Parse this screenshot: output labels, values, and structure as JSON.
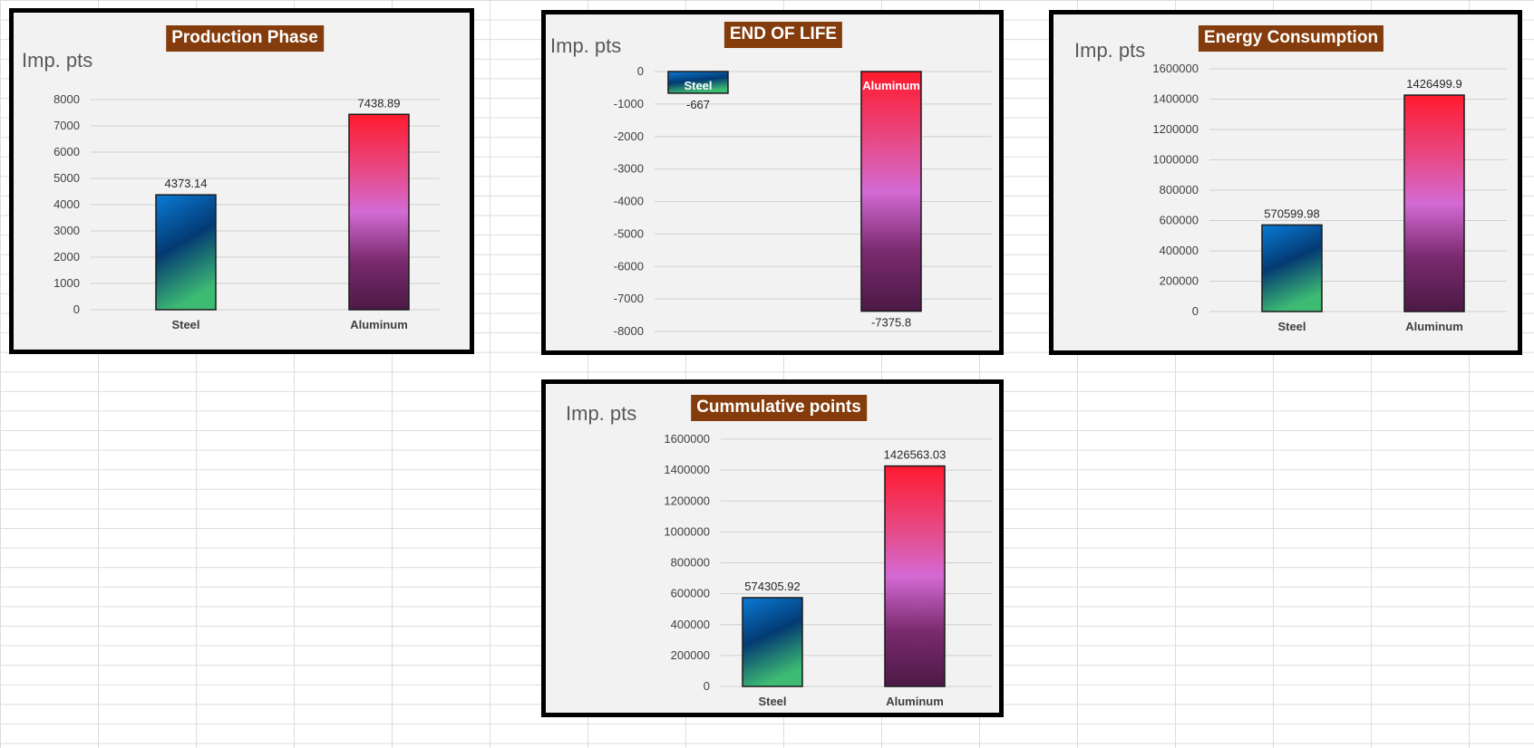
{
  "colors": {
    "title_bg": "#843c0c",
    "title_text": "#ffffff",
    "plot_bg": "#f2f2f2",
    "steel_gradient": [
      "#0a7bd6",
      "#033a73",
      "#3dbb73"
    ],
    "aluminum_gradient": [
      "#ff1a2e",
      "#e64b8a",
      "#d36ad4",
      "#7a2a6e",
      "#4b1a45"
    ]
  },
  "chart_data": [
    {
      "id": "production",
      "type": "bar",
      "title": "Production Phase",
      "ylabel": "Imp. pts",
      "categories": [
        "Steel",
        "Aluminum"
      ],
      "values": [
        4373.14,
        7438.89
      ],
      "data_labels": [
        "4373.14",
        "7438.89"
      ],
      "ylim": [
        0,
        8000
      ],
      "yticks": [
        0,
        1000,
        2000,
        3000,
        4000,
        5000,
        6000,
        7000,
        8000
      ],
      "grid": true,
      "legend": "none"
    },
    {
      "id": "end-of-life",
      "type": "bar",
      "title": "END OF LIFE",
      "ylabel": "Imp. pts",
      "categories": [
        "Steel",
        "Aluminum"
      ],
      "values": [
        -667,
        -7375.8
      ],
      "data_labels": [
        "-667",
        "-7375.8"
      ],
      "ylim": [
        -8000,
        0
      ],
      "yticks": [
        0,
        -1000,
        -2000,
        -3000,
        -4000,
        -5000,
        -6000,
        -7000,
        -8000
      ],
      "grid": true,
      "legend": "none"
    },
    {
      "id": "energy",
      "type": "bar",
      "title": "Energy Consumption",
      "ylabel": "Imp. pts",
      "categories": [
        "Steel",
        "Aluminum"
      ],
      "values": [
        570599.98,
        1426499.9
      ],
      "data_labels": [
        "570599.98",
        "1426499.9"
      ],
      "ylim": [
        0,
        1600000
      ],
      "yticks": [
        0,
        200000,
        400000,
        600000,
        800000,
        1000000,
        1200000,
        1400000,
        1600000
      ],
      "grid": true,
      "legend": "none"
    },
    {
      "id": "cumulative",
      "type": "bar",
      "title": "Cummulative points",
      "ylabel": "Imp. pts",
      "categories": [
        "Steel",
        "Aluminum"
      ],
      "values": [
        574305.92,
        1426563.03
      ],
      "data_labels": [
        "574305.92",
        "1426563.03"
      ],
      "ylim": [
        0,
        1600000
      ],
      "yticks": [
        0,
        200000,
        400000,
        600000,
        800000,
        1000000,
        1200000,
        1400000,
        1600000
      ],
      "grid": true,
      "legend": "none"
    }
  ]
}
